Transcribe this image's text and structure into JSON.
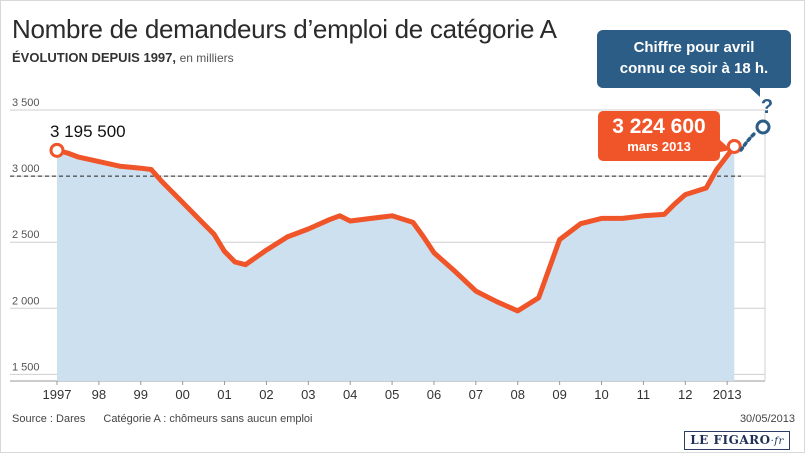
{
  "title": "Nombre de demandeurs d’emploi de catégorie A",
  "subtitle": "ÉVOLUTION DEPUIS 1997,",
  "unit": "en milliers",
  "callout_next": {
    "line1": "Chiffre pour avril",
    "line2": "connu ce soir à 18 h.",
    "mark": "?"
  },
  "callout_last": {
    "value": "3 224 600",
    "label": "mars 2013"
  },
  "start_label": "3 195 500",
  "footer": {
    "source": "Source : Dares",
    "note": "Catégorie A : chômeurs sans aucun emploi",
    "date": "30/05/2013"
  },
  "logo": {
    "main": "LE FIGARO",
    "suffix": "·fr"
  },
  "colors": {
    "line": "#f0552a",
    "area": "#cde0f0",
    "callout_blue": "#2c5d86",
    "callout_orange": "#f0552a"
  },
  "chart_data": {
    "type": "area",
    "title": "Nombre de demandeurs d’emploi de catégorie A",
    "ylabel": "en milliers",
    "ylim": [
      1450,
      3500
    ],
    "yticks": [
      1500,
      2000,
      2500,
      3000,
      3500
    ],
    "ytick_labels": [
      "1 500",
      "2 000",
      "2 500",
      "3 000",
      "3 500"
    ],
    "reference_line": 3000,
    "xlim": [
      1997,
      2013.33
    ],
    "xticks": [
      1997,
      1998,
      1999,
      2000,
      2001,
      2002,
      2003,
      2004,
      2005,
      2006,
      2007,
      2008,
      2009,
      2010,
      2011,
      2012,
      2013
    ],
    "xtick_labels": [
      "1997",
      "98",
      "99",
      "00",
      "01",
      "02",
      "03",
      "04",
      "05",
      "06",
      "07",
      "08",
      "09",
      "10",
      "11",
      "12",
      "2013"
    ],
    "x": [
      1997.0,
      1997.25,
      1997.5,
      1998.0,
      1998.5,
      1999.0,
      1999.25,
      1999.5,
      2000.0,
      2000.5,
      2000.75,
      2001.0,
      2001.25,
      2001.5,
      2002.0,
      2002.5,
      2003.0,
      2003.5,
      2003.75,
      2004.0,
      2004.5,
      2005.0,
      2005.5,
      2005.75,
      2006.0,
      2006.5,
      2007.0,
      2007.5,
      2008.0,
      2008.5,
      2009.0,
      2009.5,
      2010.0,
      2010.5,
      2011.0,
      2011.5,
      2011.75,
      2012.0,
      2012.5,
      2012.75,
      2013.17
    ],
    "series": [
      {
        "values": [
          3195,
          3175,
          3145,
          3110,
          3075,
          3060,
          3050,
          2960,
          2800,
          2640,
          2560,
          2430,
          2350,
          2330,
          2440,
          2540,
          2600,
          2670,
          2700,
          2660,
          2680,
          2700,
          2650,
          2540,
          2420,
          2280,
          2130,
          2050,
          1980,
          2080,
          2520,
          2640,
          2680,
          2680,
          2700,
          2710,
          2790,
          2860,
          2910,
          3050,
          3224
        ]
      }
    ]
  }
}
